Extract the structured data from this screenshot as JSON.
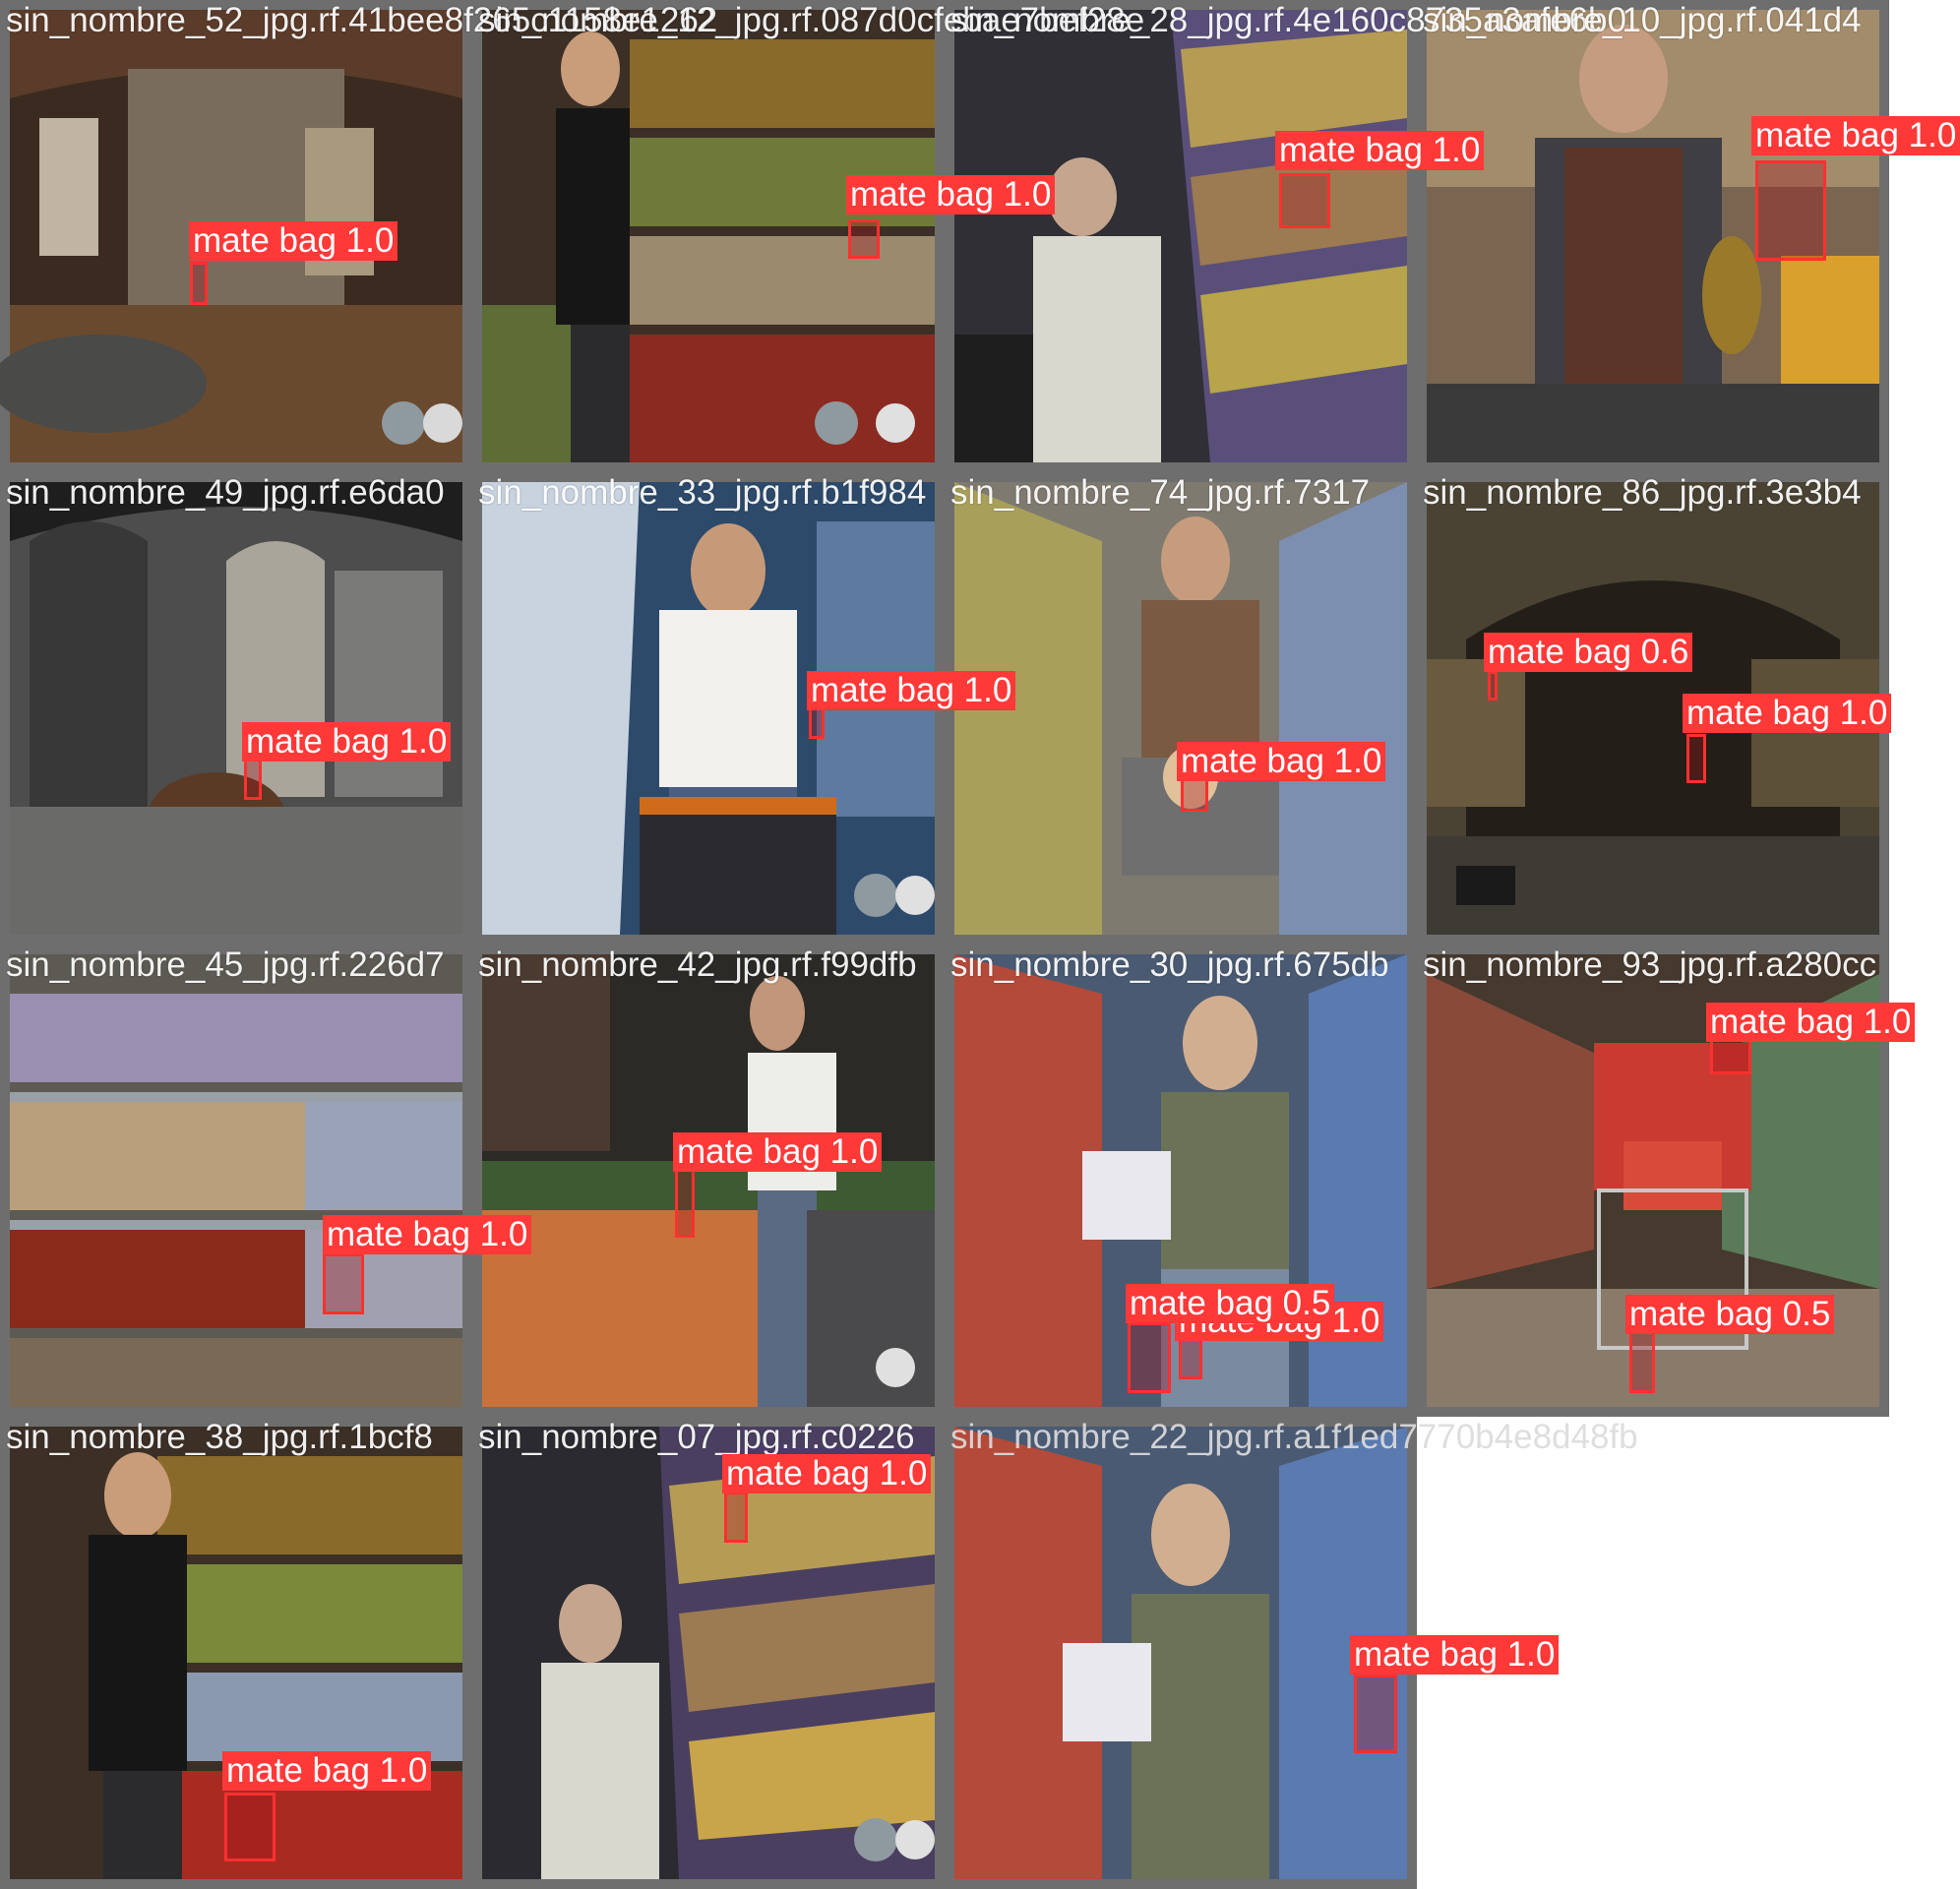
{
  "mosaic": {
    "tiles": [
      {
        "filename": "sin_nombre_52_jpg.rf.41bee8f265c1158e1262",
        "scene": "panoramic interior"
      },
      {
        "filename": "sin_nombre_12_jpg.rf.087d0cfebae7bef28e",
        "scene": "grocery produce aisle"
      },
      {
        "filename": "sin_nombre_28_jpg.rf.4e160c8735a3afe6b0",
        "scene": "supermarket shelf"
      },
      {
        "filename": "sin_nombre_10_jpg.rf.041d4",
        "scene": "checkout counter"
      },
      {
        "filename": "sin_nombre_49_jpg.rf.e6da0",
        "scene": "panoramic interior"
      },
      {
        "filename": "sin_nombre_33_jpg.rf.b1f984",
        "scene": "dairy aisle"
      },
      {
        "filename": "sin_nombre_74_jpg.rf.7317",
        "scene": "supermarket aisle"
      },
      {
        "filename": "sin_nombre_86_jpg.rf.3e3b4",
        "scene": "panoramic cellar"
      },
      {
        "filename": "sin_nombre_45_jpg.rf.226d7",
        "scene": "pantry shelves"
      },
      {
        "filename": "sin_nombre_42_jpg.rf.f99dfb",
        "scene": "produce market"
      },
      {
        "filename": "sin_nombre_30_jpg.rf.675db",
        "scene": "supermarket aisle"
      },
      {
        "filename": "sin_nombre_93_jpg.rf.a280cc",
        "scene": "shopping cart aisle"
      },
      {
        "filename": "sin_nombre_38_jpg.rf.1bcf8",
        "scene": "grocery produce aisle"
      },
      {
        "filename": "sin_nombre_07_jpg.rf.c0226",
        "scene": "supermarket shelf"
      },
      {
        "filename": "sin_nombre_22_jpg.rf.a1f1ed7770b4e8d48fb",
        "scene": "supermarket aisle"
      }
    ],
    "detections": [
      {
        "tile": 0,
        "label": "mate bag 1.0"
      },
      {
        "tile": 1,
        "label": "mate bag 1.0"
      },
      {
        "tile": 2,
        "label": "mate bag 1.0"
      },
      {
        "tile": 3,
        "label": "mate bag 1.0"
      },
      {
        "tile": 4,
        "label": "mate bag 1.0"
      },
      {
        "tile": 5,
        "label": "mate bag 1.0"
      },
      {
        "tile": 6,
        "label": "mate bag 1.0"
      },
      {
        "tile": 7,
        "label": "mate bag 0.6"
      },
      {
        "tile": 7,
        "label": "mate bag 1.0"
      },
      {
        "tile": 8,
        "label": "mate bag 1.0"
      },
      {
        "tile": 9,
        "label": "mate bag 1.0"
      },
      {
        "tile": 10,
        "label": "mate bag 1.0"
      },
      {
        "tile": 10,
        "label": "mate bag 0.5"
      },
      {
        "tile": 11,
        "label": "mate bag 1.0"
      },
      {
        "tile": 11,
        "label": "mate bag 0.5"
      },
      {
        "tile": 12,
        "label": "mate bag 1.0"
      },
      {
        "tile": 13,
        "label": "mate bag 1.0"
      },
      {
        "tile": 14,
        "label": "mate bag 1.0"
      }
    ],
    "colors": {
      "box": "#ff3030",
      "label_bg": "#ff3838",
      "label_text": "#ffffff",
      "tile_border": "#6e6e6e",
      "page_bg": "#ffffff"
    }
  }
}
